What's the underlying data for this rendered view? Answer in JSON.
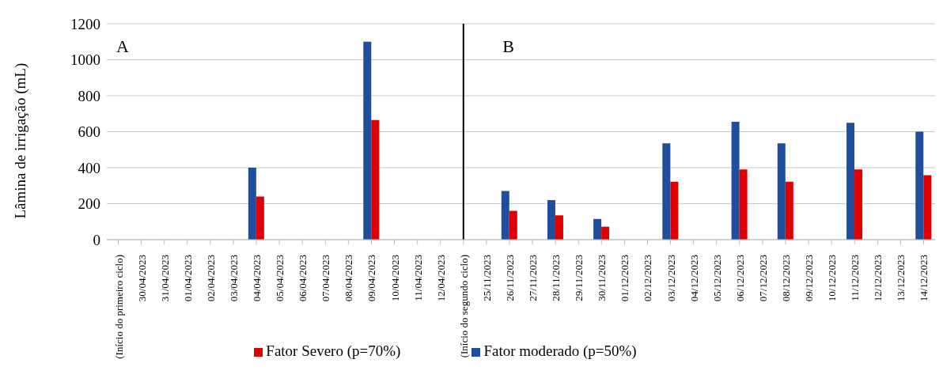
{
  "chart_data": {
    "type": "bar",
    "ylabel": "Lâmina de irrigação (mL)",
    "categories": [
      "(Início do primeiro ciclo)",
      "30/04/2023",
      "31/04/2023",
      "01/04/2023",
      "02/04/2023",
      "03/04/2023",
      "04/04/2023",
      "05/04/2023",
      "06/04/2023",
      "07/04/2023",
      "08/04/2023",
      "09/04/2023",
      "10/04/2023",
      "11/04/2023",
      "12/04/2023",
      "(Início do segundo ciclo)",
      "25/11/2023",
      "26/11/2023",
      "27/11/2023",
      "28/11/2023",
      "29/11/2023",
      "30/11/2023",
      "01/12/2023",
      "02/12/2023",
      "03/12/2023",
      "04/12/2023",
      "05/12/2023",
      "06/12/2023",
      "07/12/2023",
      "08/12/2023",
      "09/12/2023",
      "10/12/2023",
      "11/12/2023",
      "12/12/2023",
      "13/12/2023",
      "14/12/2023"
    ],
    "series": [
      {
        "name": "Fator moderado (p=50%)",
        "color": "#1f4e9c",
        "values": [
          null,
          null,
          null,
          null,
          null,
          null,
          400,
          null,
          null,
          null,
          null,
          1100,
          null,
          null,
          null,
          null,
          null,
          270,
          null,
          220,
          null,
          115,
          null,
          null,
          535,
          null,
          null,
          655,
          null,
          535,
          null,
          null,
          650,
          null,
          null,
          600
        ]
      },
      {
        "name": "Fator Severo (p=70%)",
        "color": "#e00000",
        "values": [
          null,
          null,
          null,
          null,
          null,
          null,
          240,
          null,
          null,
          null,
          null,
          665,
          null,
          null,
          null,
          null,
          null,
          160,
          null,
          135,
          null,
          72,
          null,
          null,
          322,
          null,
          null,
          390,
          null,
          322,
          null,
          null,
          390,
          null,
          null,
          358
        ]
      }
    ],
    "ylim": [
      0,
      1200
    ],
    "yticks": [
      0,
      200,
      400,
      600,
      800,
      1000,
      1200
    ],
    "grid": "y",
    "legend": "bottom",
    "ref_lines": [
      {
        "axis": "x",
        "value": "(Início do segundo ciclo)",
        "color": "#000000"
      }
    ],
    "annotations": [
      "A",
      "B"
    ]
  }
}
